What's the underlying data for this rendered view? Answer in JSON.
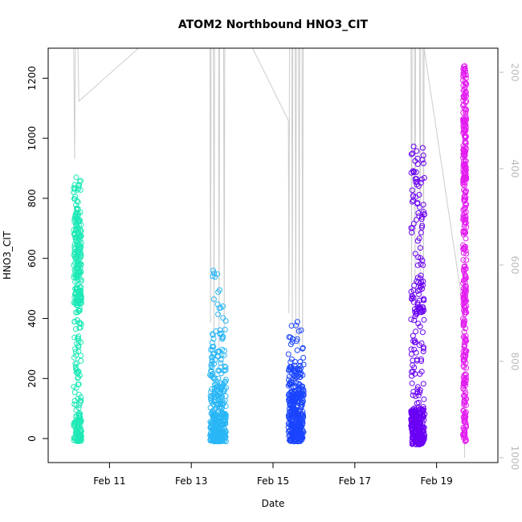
{
  "chart_data": {
    "type": "scatter",
    "title": "ATOM2 Northbound HNO3_CIT",
    "xlabel": "Date",
    "ylabel": "HNO3_CIT",
    "x_ticks": [
      {
        "date": "2016-02-11",
        "label": "Feb 11"
      },
      {
        "date": "2016-02-13",
        "label": "Feb 13"
      },
      {
        "date": "2016-02-15",
        "label": "Feb 15"
      },
      {
        "date": "2016-02-17",
        "label": "Feb 17"
      },
      {
        "date": "2016-02-19",
        "label": "Feb 19"
      }
    ],
    "xlim": [
      "2016-02-09T12:00",
      "2016-02-20T12:00"
    ],
    "ylim": [
      -80,
      1300
    ],
    "y_ticks": [
      0,
      200,
      400,
      600,
      800,
      1000,
      1200
    ],
    "y2_ticks": [
      200,
      400,
      600,
      800,
      1000
    ],
    "y2lim": [
      150,
      1010
    ],
    "y2_reversed": true,
    "y2_color": "#bbbbbb",
    "grid": false,
    "series": [
      {
        "color": "#1de9b6",
        "start": "2016-02-10T03:00",
        "end": "2016-02-10T07:30",
        "clusters": [
          {
            "min": 450,
            "max": 780,
            "share": 0.55
          },
          {
            "min": -10,
            "max": 80,
            "share": 0.22
          },
          {
            "min": 80,
            "max": 450,
            "share": 0.18
          },
          {
            "min": 780,
            "max": 870,
            "share": 0.05
          }
        ]
      },
      {
        "color": "#29b6f6",
        "start": "2016-02-13T11:00",
        "end": "2016-02-13T20:30",
        "clusters": [
          {
            "min": -10,
            "max": 80,
            "share": 0.55
          },
          {
            "min": 80,
            "max": 200,
            "share": 0.25
          },
          {
            "min": 200,
            "max": 350,
            "share": 0.15
          },
          {
            "min": 350,
            "max": 570,
            "share": 0.05
          }
        ]
      },
      {
        "color": "#1a44ff",
        "start": "2016-02-15T09:00",
        "end": "2016-02-15T18:00",
        "clusters": [
          {
            "min": -10,
            "max": 150,
            "share": 0.75
          },
          {
            "min": 150,
            "max": 260,
            "share": 0.2
          },
          {
            "min": 260,
            "max": 400,
            "share": 0.05
          }
        ]
      },
      {
        "color": "#6a00f4",
        "start": "2016-02-18T09:00",
        "end": "2016-02-18T17:00",
        "clusters": [
          {
            "min": -20,
            "max": 100,
            "share": 0.55
          },
          {
            "min": 100,
            "max": 420,
            "share": 0.15
          },
          {
            "min": 420,
            "max": 980,
            "share": 0.3
          }
        ]
      },
      {
        "color": "#e31cf0",
        "start": "2016-02-19T15:30",
        "end": "2016-02-19T17:30",
        "clusters": [
          {
            "min": 850,
            "max": 1250,
            "share": 0.4
          },
          {
            "min": 420,
            "max": 850,
            "share": 0.3
          },
          {
            "min": -10,
            "max": 420,
            "share": 0.3
          }
        ]
      }
    ],
    "altitude_trace": {
      "color": "#cccccc",
      "points": [
        {
          "t": "2016-02-10T03:00",
          "v": 150
        },
        {
          "t": "2016-02-10T03:30",
          "v": 380
        },
        {
          "t": "2016-02-10T04:00",
          "v": 150
        },
        {
          "t": "2016-02-10T05:30",
          "v": 150
        },
        {
          "t": "2016-02-10T06:00",
          "v": 260
        },
        {
          "t": "2016-02-11T17:00",
          "v": 150
        },
        {
          "t": "2016-02-13T11:00",
          "v": 150
        },
        {
          "t": "2016-02-13T11:20",
          "v": 720
        },
        {
          "t": "2016-02-13T11:40",
          "v": 150
        },
        {
          "t": "2016-02-13T13:00",
          "v": 150
        },
        {
          "t": "2016-02-13T13:20",
          "v": 750
        },
        {
          "t": "2016-02-13T13:40",
          "v": 150
        },
        {
          "t": "2016-02-13T16:00",
          "v": 150
        },
        {
          "t": "2016-02-13T16:20",
          "v": 780
        },
        {
          "t": "2016-02-13T16:40",
          "v": 150
        },
        {
          "t": "2016-02-13T19:00",
          "v": 150
        },
        {
          "t": "2016-02-13T19:20",
          "v": 740
        },
        {
          "t": "2016-02-13T19:40",
          "v": 150
        },
        {
          "t": "2016-02-14T12:00",
          "v": 150
        },
        {
          "t": "2016-02-15T09:00",
          "v": 300
        },
        {
          "t": "2016-02-15T09:20",
          "v": 700
        },
        {
          "t": "2016-02-15T09:40",
          "v": 150
        },
        {
          "t": "2016-02-15T11:00",
          "v": 150
        },
        {
          "t": "2016-02-15T11:20",
          "v": 730
        },
        {
          "t": "2016-02-15T11:40",
          "v": 150
        },
        {
          "t": "2016-02-15T13:00",
          "v": 150
        },
        {
          "t": "2016-02-15T13:20",
          "v": 760
        },
        {
          "t": "2016-02-15T13:40",
          "v": 150
        },
        {
          "t": "2016-02-15T15:00",
          "v": 150
        },
        {
          "t": "2016-02-15T15:20",
          "v": 770
        },
        {
          "t": "2016-02-15T15:40",
          "v": 150
        },
        {
          "t": "2016-02-15T17:00",
          "v": 150
        },
        {
          "t": "2016-02-15T17:20",
          "v": 780
        },
        {
          "t": "2016-02-15T17:40",
          "v": 150
        },
        {
          "t": "2016-02-18T09:00",
          "v": 150
        },
        {
          "t": "2016-02-18T09:20",
          "v": 660
        },
        {
          "t": "2016-02-18T09:40",
          "v": 150
        },
        {
          "t": "2016-02-18T11:00",
          "v": 150
        },
        {
          "t": "2016-02-18T11:20",
          "v": 640
        },
        {
          "t": "2016-02-18T11:40",
          "v": 150
        },
        {
          "t": "2016-02-18T14:00",
          "v": 150
        },
        {
          "t": "2016-02-18T14:20",
          "v": 620
        },
        {
          "t": "2016-02-18T14:40",
          "v": 150
        },
        {
          "t": "2016-02-18T16:00",
          "v": 150
        },
        {
          "t": "2016-02-18T16:20",
          "v": 650
        },
        {
          "t": "2016-02-18T16:40",
          "v": 150
        },
        {
          "t": "2016-02-19T16:00",
          "v": 700
        },
        {
          "t": "2016-02-19T16:30",
          "v": 1000
        }
      ]
    }
  }
}
